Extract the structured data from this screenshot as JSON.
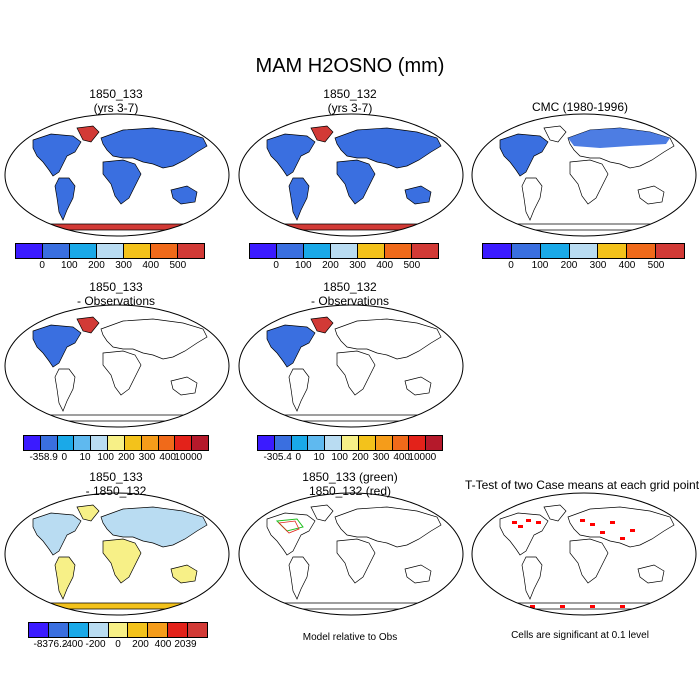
{
  "title": "MAM H2OSNO (mm)",
  "panels": [
    {
      "id": "p1",
      "title": [
        "1850_133",
        "(yrs 3-7)"
      ],
      "kind": "abs"
    },
    {
      "id": "p2",
      "title": [
        "1850_132",
        "(yrs 3-7)"
      ],
      "kind": "abs"
    },
    {
      "id": "p3",
      "title": [
        "CMC (1980-1996)"
      ],
      "kind": "obs"
    },
    {
      "id": "p4",
      "title": [
        "1850_133",
        "- Observations"
      ],
      "kind": "bias"
    },
    {
      "id": "p5",
      "title": [
        "1850_132",
        "- Observations"
      ],
      "kind": "bias"
    },
    {
      "id": "p6",
      "title": [
        "1850_133",
        "- 1850_132"
      ],
      "kind": "diff"
    },
    {
      "id": "p7",
      "title": [
        "1850_133 (green)",
        "1850_132 (red)"
      ],
      "kind": "contour"
    },
    {
      "id": "p8",
      "title": [
        "T-Test of two Case means at each grid point"
      ],
      "kind": "ttest"
    }
  ],
  "colorbars": {
    "abs": {
      "colors": [
        "#3b1bff",
        "#3a6fe0",
        "#1aa9e8",
        "#b9dcf2",
        "#f3c21b",
        "#f06a1a",
        "#d23a36"
      ],
      "ticks": [
        "0",
        "100",
        "200",
        "300",
        "400",
        "500"
      ]
    },
    "bias1": {
      "colors": [
        "#3b1bff",
        "#3a6fe0",
        "#1aa9e8",
        "#5fb9ef",
        "#b9dcf2",
        "#f7f087",
        "#f3c21b",
        "#f59c1a",
        "#f06a1a",
        "#e3221a",
        "#b5192b"
      ],
      "ticks": [
        "-358.9",
        "0",
        "10",
        "100",
        "200",
        "300",
        "400",
        "10000"
      ]
    },
    "bias2": {
      "colors": [
        "#3b1bff",
        "#3a6fe0",
        "#1aa9e8",
        "#5fb9ef",
        "#b9dcf2",
        "#f7f087",
        "#f3c21b",
        "#f59c1a",
        "#f06a1a",
        "#e3221a",
        "#b5192b"
      ],
      "ticks": [
        "-305.4",
        "0",
        "10",
        "100",
        "200",
        "300",
        "400",
        "10000"
      ]
    },
    "diff": {
      "colors": [
        "#3b1bff",
        "#3a6fe0",
        "#1aa9e8",
        "#b9dcf2",
        "#f7f087",
        "#f3c21b",
        "#f59c1a",
        "#e3221a",
        "#d23a36"
      ],
      "ticks": [
        "-8376.2",
        "-400",
        "-200",
        "0",
        "200",
        "400",
        "2039"
      ]
    }
  },
  "notes": {
    "model_rel": "Model relative to Obs",
    "significance": "Cells are significant at 0.1 level"
  }
}
